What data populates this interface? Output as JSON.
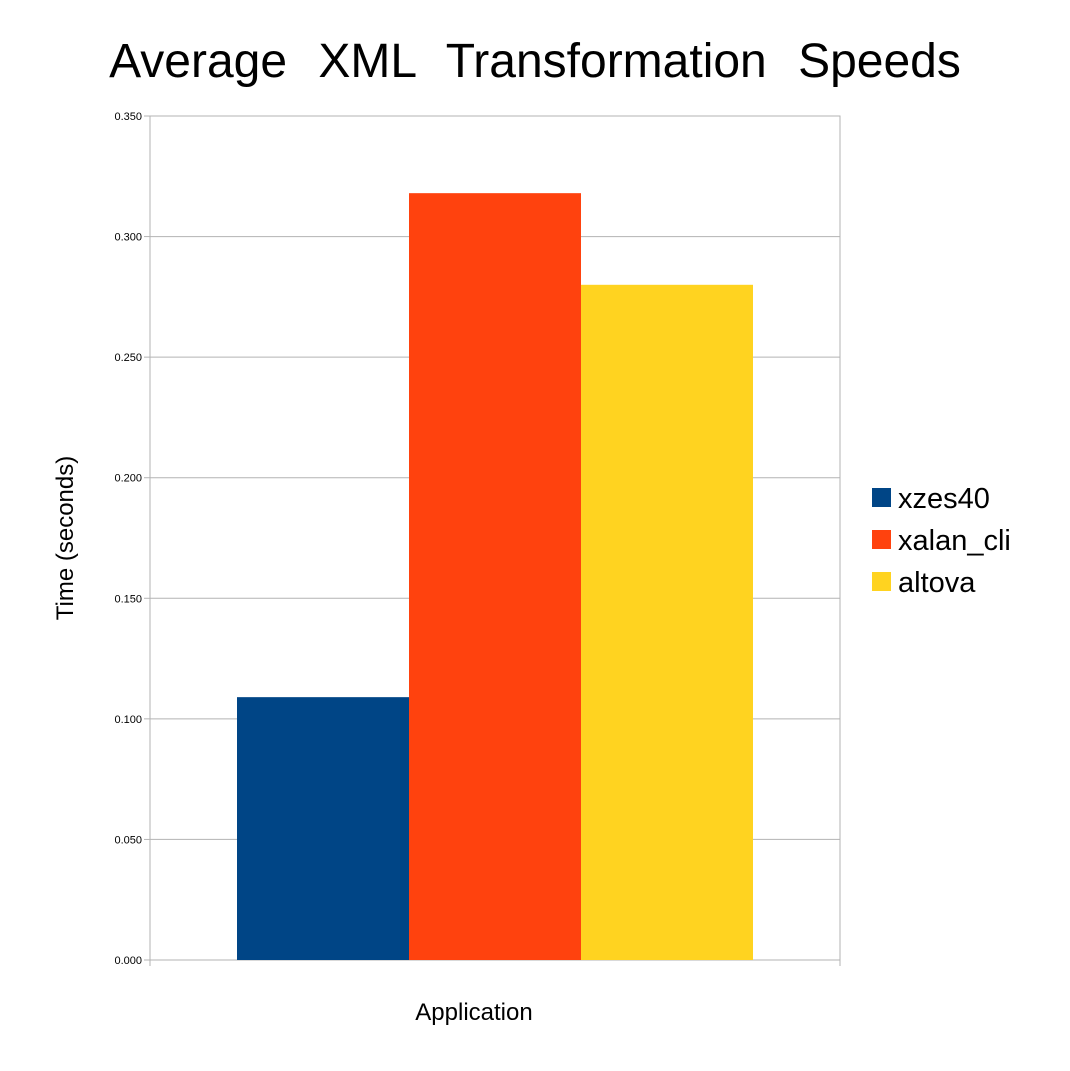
{
  "chart_data": {
    "type": "bar",
    "title": "Average XML Transformation Speeds",
    "xlabel": "Application",
    "ylabel": "Time (seconds)",
    "ylim": [
      0,
      0.35
    ],
    "yticks": [
      "0.000",
      "0.050",
      "0.100",
      "0.150",
      "0.200",
      "0.250",
      "0.300",
      "0.350"
    ],
    "grid": true,
    "legend_position": "right",
    "categories": [
      ""
    ],
    "series": [
      {
        "name": "xzes40",
        "values": [
          0.109
        ],
        "color": "#004586"
      },
      {
        "name": "xalan_cli",
        "values": [
          0.318
        ],
        "color": "#ff420e"
      },
      {
        "name": "altova",
        "values": [
          0.28
        ],
        "color": "#ffd320"
      }
    ]
  }
}
